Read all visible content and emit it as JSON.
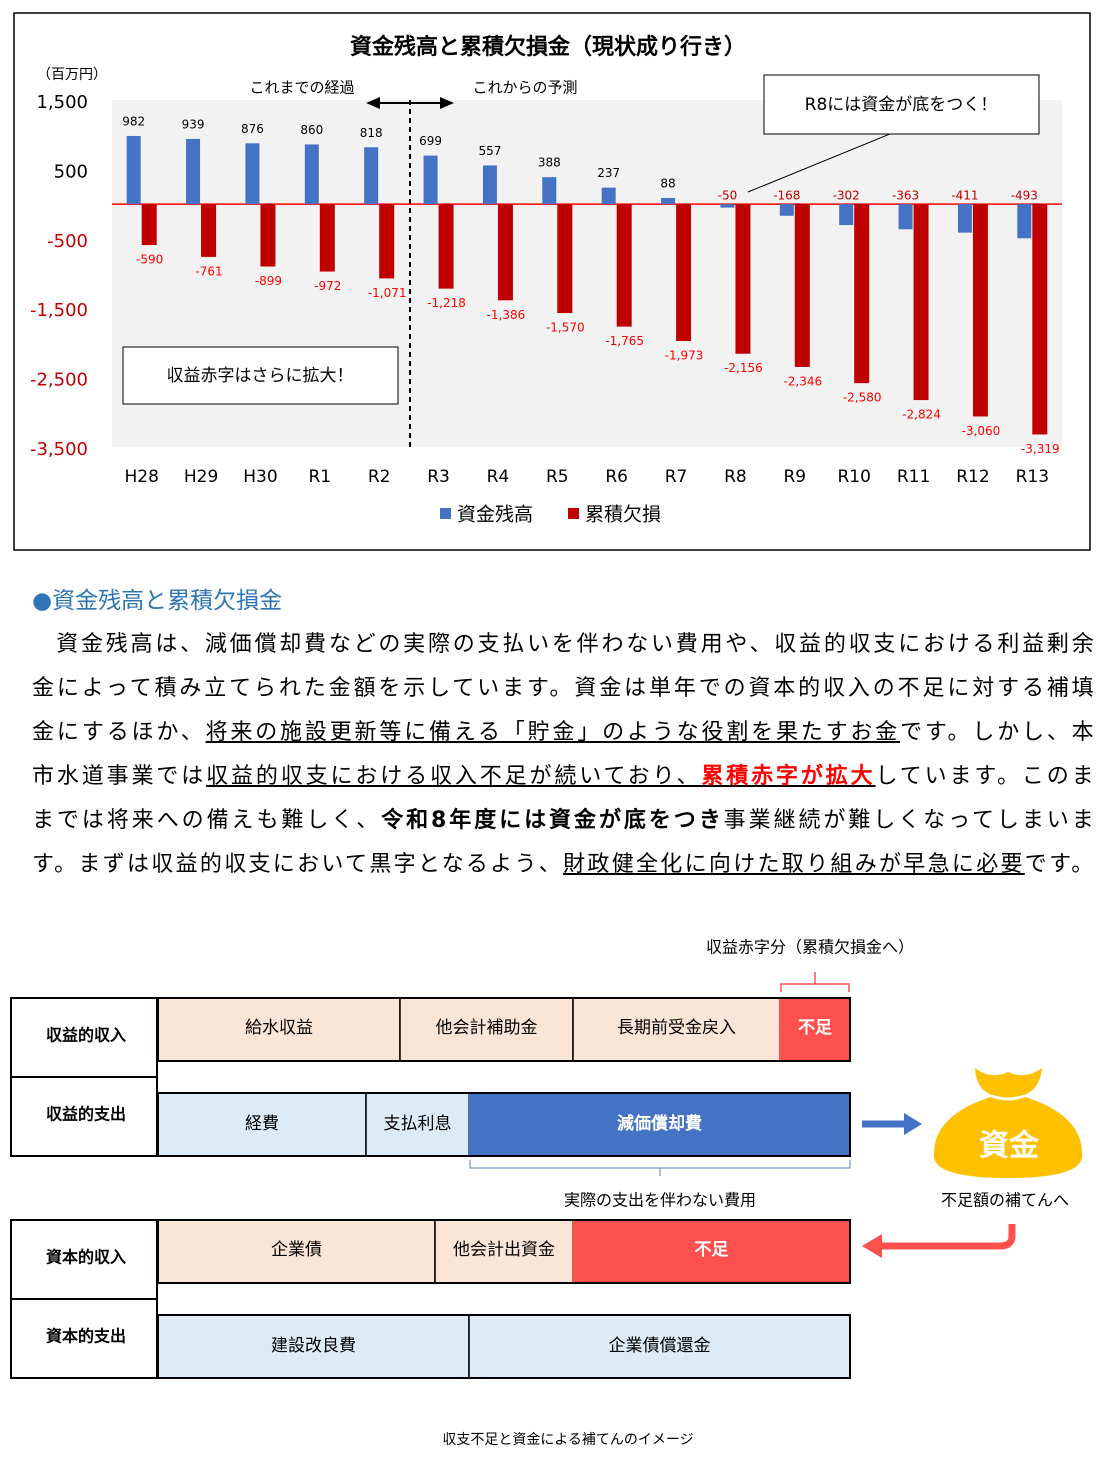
{
  "chart_data": {
    "type": "bar",
    "title": "資金残高と累積欠損金（現状成り行き）",
    "y_label": "（百万円）",
    "categories": [
      "H28",
      "H29",
      "H30",
      "R1",
      "R2",
      "R3",
      "R4",
      "R5",
      "R6",
      "R7",
      "R8",
      "R9",
      "R10",
      "R11",
      "R12",
      "R13"
    ],
    "series": [
      {
        "name": "資金残高",
        "color": "#4472c4",
        "values": [
          982,
          939,
          876,
          860,
          818,
          699,
          557,
          388,
          237,
          88,
          -50,
          -168,
          -302,
          -363,
          -411,
          -493
        ]
      },
      {
        "name": "累積欠損",
        "color": "#c00000",
        "values": [
          -590,
          -761,
          -899,
          -972,
          -1071,
          -1218,
          -1386,
          -1570,
          -1765,
          -1973,
          -2156,
          -2346,
          -2580,
          -2824,
          -3060,
          -3319
        ],
        "value_labels": [
          "-590",
          "-761",
          "-899",
          "-972",
          "-1,071",
          "-1,218",
          "-1,386",
          "-1,570",
          "-1,765",
          "-1,973",
          "-2,156",
          "-2,346",
          "-2,580",
          "-2,824",
          "-3,060",
          "-3,319"
        ]
      }
    ],
    "ylim": [
      -3500,
      1500
    ],
    "yticks": [
      {
        "value": 1500,
        "label": "1,500"
      },
      500,
      -500,
      {
        "value": -1500,
        "label": "-1,500"
      },
      {
        "value": -2500,
        "label": "-2,500"
      },
      {
        "value": -3500,
        "label": "-3,500"
      }
    ],
    "grid": false,
    "legend": "bottom",
    "annotations": [
      "これまでの経過",
      "これからの予測",
      "R8には資金が底をつく！",
      "収益赤字はさらに拡大！"
    ]
  },
  "article": {
    "heading": "●資金残高と累積欠損金",
    "segments": [
      "資金残高は、減価償却費などの実際の支払いを伴わない費用や、収益的収支における利益剰余金によって積み立てられた金額を示しています。資金は単年での資本的収入の不足に対する補填金にするほか、",
      "将来の施設更新等に備える「貯金」のような役割を果たすお金",
      "です。しかし、本市水道事業では",
      "収益的収支における収入不足が続いており、",
      "累積赤字が拡大",
      "しています。このままでは将来への備えも難しく、",
      "令和8年度には資金が底をつき",
      "事業継続が難しくなってしまいます。まずは収益的収支において黒字となるよう、",
      "財政健全化に向けた取り組みが早急に必要",
      "です。"
    ]
  },
  "diagram": {
    "deficit_note": "収益赤字分（累積欠損金へ）",
    "rows": [
      {
        "label": "収益的収入",
        "cells": [
          "給水収益",
          "他会計補助金",
          "長期前受金戻入",
          "不足"
        ]
      },
      {
        "label": "収益的支出",
        "cells": [
          "経費",
          "支払利息",
          "減価償却費"
        ]
      },
      {
        "label": "資本的収入",
        "cells": [
          "企業債",
          "他会計出資金",
          "不足"
        ]
      },
      {
        "label": "資本的支出",
        "cells": [
          "建設改良費",
          "企業債償還金"
        ]
      }
    ],
    "brace_label": "実際の支出を伴わない費用",
    "fund": "資金",
    "fund_note": "不足額の補てんへ",
    "caption": "収支不足と資金による補てんのイメージ"
  }
}
